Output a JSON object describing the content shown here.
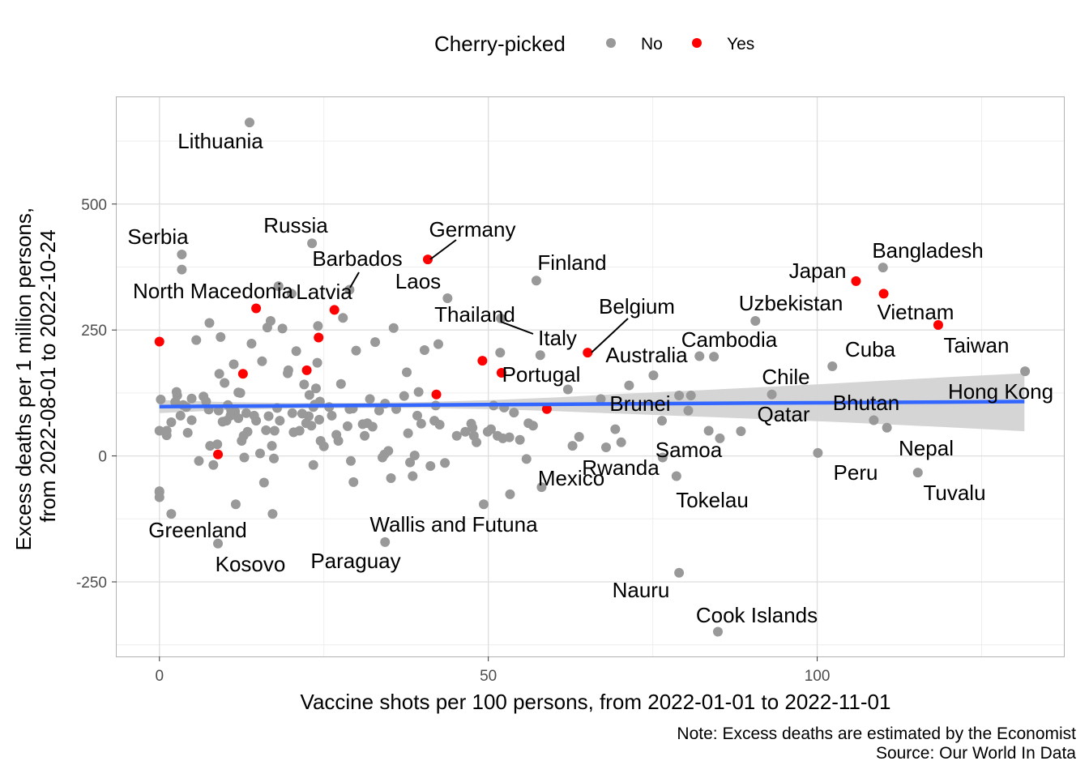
{
  "chart_data": {
    "type": "scatter",
    "xlabel": "Vaccine shots per 100 persons, from 2022-01-01 to 2022-11-01",
    "ylabel": [
      "Excess deaths per 1 million persons,",
      "from 2022-08-01 to 2022-10-24"
    ],
    "xlim": [
      -6.5,
      137.5
    ],
    "ylim": [
      -398,
      712
    ],
    "xticks": [
      0,
      50,
      100
    ],
    "yticks": [
      -250,
      0,
      250,
      500
    ],
    "xtick_labels": [
      "0",
      "50",
      "100"
    ],
    "ytick_labels": [
      "-250",
      "0",
      "250",
      "500"
    ],
    "grid": true,
    "legend": {
      "title": "Cherry-picked",
      "placement": "top",
      "entries": [
        {
          "key": "No",
          "label": "No",
          "color": "#999999"
        },
        {
          "key": "Yes",
          "label": "Yes",
          "color": "#ff0000"
        }
      ]
    },
    "trend": {
      "color": "#3366ff",
      "ribbon_color": "#d3d3d3",
      "x": [
        0,
        10,
        20,
        30,
        40,
        50,
        60,
        70,
        80,
        90,
        100,
        110,
        120,
        131.5
      ],
      "y": [
        98,
        98.8,
        99.5,
        100.3,
        101,
        101.8,
        102.5,
        103.3,
        104,
        104.8,
        105.5,
        106.3,
        107,
        108
      ],
      "lower": [
        85,
        91,
        94,
        95,
        95,
        93,
        89,
        84,
        79,
        74,
        69,
        63,
        57,
        49
      ],
      "upper": [
        111,
        107,
        105,
        105.5,
        107,
        110.5,
        116,
        123,
        129,
        135.5,
        142,
        149.5,
        156.5,
        164
      ]
    },
    "labeled_points": [
      {
        "name": "Lithuania",
        "x": 13.7,
        "y": 662,
        "cherry": "No"
      },
      {
        "name": "Serbia",
        "x": 3.4,
        "y": 400,
        "cherry": "No"
      },
      {
        "name": "North Macedonia",
        "x": 14.7,
        "y": 293,
        "cherry": "Yes"
      },
      {
        "name": "Russia",
        "x": 23.2,
        "y": 422,
        "cherry": "No"
      },
      {
        "name": "Barbados",
        "x": 28.9,
        "y": 330,
        "cherry": "No"
      },
      {
        "name": "Latvia",
        "x": 26.6,
        "y": 290,
        "cherry": "Yes"
      },
      {
        "name": "Germany",
        "x": 40.8,
        "y": 390,
        "cherry": "Yes"
      },
      {
        "name": "Laos",
        "x": 43.8,
        "y": 313,
        "cherry": "No"
      },
      {
        "name": "Thailand",
        "x": 51.9,
        "y": 273,
        "cherry": "No"
      },
      {
        "name": "Italy",
        "x": 49.1,
        "y": 189,
        "cherry": "Yes"
      },
      {
        "name": "Portugal",
        "x": 52,
        "y": 165,
        "cherry": "Yes"
      },
      {
        "name": "Finland",
        "x": 57.3,
        "y": 348,
        "cherry": "No"
      },
      {
        "name": "Belgium",
        "x": 65.1,
        "y": 205,
        "cherry": "Yes"
      },
      {
        "name": "Australia",
        "x": 58.9,
        "y": 93,
        "cherry": "Yes"
      },
      {
        "name": "Mexico",
        "x": 58.1,
        "y": -62,
        "cherry": "No"
      },
      {
        "name": "Rwanda",
        "x": 67.9,
        "y": 17,
        "cherry": "No"
      },
      {
        "name": "Brunei",
        "x": 67.1,
        "y": 113,
        "cherry": "No"
      },
      {
        "name": "Samoa",
        "x": 76.5,
        "y": -3,
        "cherry": "No"
      },
      {
        "name": "Tokelau",
        "x": 78.6,
        "y": -40,
        "cherry": "No"
      },
      {
        "name": "Cambodia",
        "x": 84.3,
        "y": 197,
        "cherry": "No"
      },
      {
        "name": "Uzbekistan",
        "x": 90.6,
        "y": 268,
        "cherry": "No"
      },
      {
        "name": "Chile",
        "x": 93.1,
        "y": 122,
        "cherry": "No"
      },
      {
        "name": "Qatar",
        "x": 88.4,
        "y": 49,
        "cherry": "No"
      },
      {
        "name": "Nauru",
        "x": 79,
        "y": -232,
        "cherry": "No"
      },
      {
        "name": "Cook Islands",
        "x": 84.9,
        "y": -349,
        "cherry": "No"
      },
      {
        "name": "Japan",
        "x": 105.9,
        "y": 347,
        "cherry": "Yes"
      },
      {
        "name": "Bangladesh",
        "x": 110,
        "y": 374,
        "cherry": "No"
      },
      {
        "name": "Vietnam",
        "x": 110.1,
        "y": 322,
        "cherry": "Yes"
      },
      {
        "name": "Taiwan",
        "x": 118.4,
        "y": 260,
        "cherry": "Yes"
      },
      {
        "name": "Cuba",
        "x": 102.3,
        "y": 178,
        "cherry": "No"
      },
      {
        "name": "Bhutan",
        "x": 108.6,
        "y": 71,
        "cherry": "No"
      },
      {
        "name": "Hong Kong",
        "x": 131.6,
        "y": 168,
        "cherry": "No"
      },
      {
        "name": "Peru",
        "x": 100.1,
        "y": 6,
        "cherry": "No"
      },
      {
        "name": "Nepal",
        "x": 110.6,
        "y": 56,
        "cherry": "No"
      },
      {
        "name": "Tuvalu",
        "x": 115.3,
        "y": -33,
        "cherry": "No"
      },
      {
        "name": "Greenland",
        "x": 0,
        "y": -70,
        "cherry": "No"
      },
      {
        "name": "Kosovo",
        "x": 8.9,
        "y": -174,
        "cherry": "No"
      },
      {
        "name": "Wallis and Futuna",
        "x": 34.3,
        "y": -171,
        "cherry": "No"
      },
      {
        "name": "Paraguay",
        "x": 34.2,
        "y": 3,
        "cherry": "No"
      }
    ],
    "labels": [
      {
        "name": "Lithuania"
      },
      {
        "name": "Serbia"
      },
      {
        "name": "North Macedonia"
      },
      {
        "name": "Russia"
      },
      {
        "name": "Barbados"
      },
      {
        "name": "Latvia"
      },
      {
        "name": "Germany"
      },
      {
        "name": "Laos"
      },
      {
        "name": "Thailand"
      },
      {
        "name": "Italy"
      },
      {
        "name": "Portugal"
      },
      {
        "name": "Finland"
      },
      {
        "name": "Belgium"
      },
      {
        "name": "Australia"
      },
      {
        "name": "Mexico"
      },
      {
        "name": "Rwanda"
      },
      {
        "name": "Brunei"
      },
      {
        "name": "Samoa"
      },
      {
        "name": "Tokelau"
      },
      {
        "name": "Cambodia"
      },
      {
        "name": "Uzbekistan"
      },
      {
        "name": "Chile"
      },
      {
        "name": "Qatar"
      },
      {
        "name": "Nauru"
      },
      {
        "name": "Cook Islands"
      },
      {
        "name": "Japan"
      },
      {
        "name": "Bangladesh"
      },
      {
        "name": "Vietnam"
      },
      {
        "name": "Taiwan"
      },
      {
        "name": "Cuba"
      },
      {
        "name": "Bhutan"
      },
      {
        "name": "Hong Kong"
      },
      {
        "name": "Peru"
      },
      {
        "name": "Nepal"
      },
      {
        "name": "Tuvalu"
      },
      {
        "name": "Greenland"
      },
      {
        "name": "Kosovo"
      },
      {
        "name": "Wallis and Futuna"
      },
      {
        "name": "Paraguay"
      }
    ],
    "other_points_yes": [
      [
        0,
        227
      ],
      [
        8.9,
        3
      ],
      [
        12.7,
        163
      ],
      [
        22.4,
        170
      ],
      [
        24.2,
        235
      ],
      [
        42.1,
        122
      ]
    ],
    "other_points_no": [
      [
        0.2,
        112
      ],
      [
        0,
        50
      ],
      [
        0,
        -72
      ],
      [
        0,
        -82
      ],
      [
        1.1,
        41
      ],
      [
        1.1,
        50
      ],
      [
        1.8,
        -115
      ],
      [
        1.8,
        67
      ],
      [
        2.4,
        107
      ],
      [
        2.6,
        127
      ],
      [
        2.7,
        120
      ],
      [
        3.4,
        370
      ],
      [
        3.2,
        80
      ],
      [
        3.6,
        101
      ],
      [
        4.1,
        97
      ],
      [
        4.3,
        46
      ],
      [
        4.9,
        114
      ],
      [
        4.9,
        71
      ],
      [
        5.6,
        230
      ],
      [
        6,
        -10
      ],
      [
        6.7,
        118
      ],
      [
        7.1,
        108
      ],
      [
        7.5,
        92
      ],
      [
        7.6,
        264
      ],
      [
        7.7,
        20
      ],
      [
        8.2,
        -18
      ],
      [
        8.8,
        23
      ],
      [
        9,
        90
      ],
      [
        9.1,
        163
      ],
      [
        9.3,
        236
      ],
      [
        9.6,
        68
      ],
      [
        9.9,
        145
      ],
      [
        10.2,
        70
      ],
      [
        10.4,
        101
      ],
      [
        10.8,
        80
      ],
      [
        10.9,
        90
      ],
      [
        11.3,
        182
      ],
      [
        11.5,
        88
      ],
      [
        11.6,
        -96
      ],
      [
        12,
        75
      ],
      [
        12,
        126
      ],
      [
        12.3,
        125
      ],
      [
        12.5,
        30
      ],
      [
        12.8,
        40
      ],
      [
        12.9,
        -3
      ],
      [
        13.2,
        85
      ],
      [
        13.4,
        48
      ],
      [
        14,
        223
      ],
      [
        14.4,
        80
      ],
      [
        14.7,
        70
      ],
      [
        15.3,
        5
      ],
      [
        15.6,
        188
      ],
      [
        15.9,
        -53
      ],
      [
        16.2,
        51
      ],
      [
        16.4,
        255
      ],
      [
        16.6,
        79
      ],
      [
        16.9,
        268
      ],
      [
        17.1,
        20
      ],
      [
        17.2,
        -115
      ],
      [
        17.4,
        -5
      ],
      [
        17.5,
        50
      ],
      [
        17.9,
        95
      ],
      [
        18.1,
        337
      ],
      [
        18.3,
        70
      ],
      [
        18.7,
        253
      ],
      [
        19.5,
        164
      ],
      [
        19.6,
        170
      ],
      [
        20.1,
        322
      ],
      [
        20.2,
        85
      ],
      [
        20.4,
        47
      ],
      [
        20.8,
        208
      ],
      [
        21.3,
        50
      ],
      [
        21.7,
        84
      ],
      [
        22,
        142
      ],
      [
        22.3,
        65
      ],
      [
        22.7,
        79
      ],
      [
        22.8,
        121
      ],
      [
        23.1,
        60
      ],
      [
        23.4,
        97
      ],
      [
        23.4,
        -18
      ],
      [
        23.6,
        102
      ],
      [
        23.8,
        134
      ],
      [
        24,
        185
      ],
      [
        24.1,
        258
      ],
      [
        24.3,
        72
      ],
      [
        24.4,
        108
      ],
      [
        24.5,
        30
      ],
      [
        25,
        19
      ],
      [
        25.8,
        97
      ],
      [
        26.2,
        80
      ],
      [
        26.9,
        42
      ],
      [
        27.2,
        30
      ],
      [
        27.6,
        143
      ],
      [
        27.9,
        274
      ],
      [
        28.6,
        59
      ],
      [
        28.9,
        93
      ],
      [
        29.1,
        -10
      ],
      [
        29.4,
        94
      ],
      [
        29.5,
        -52
      ],
      [
        29.9,
        209
      ],
      [
        30.9,
        63
      ],
      [
        31.2,
        40
      ],
      [
        31.6,
        65
      ],
      [
        32,
        113
      ],
      [
        32.4,
        58
      ],
      [
        32.8,
        226
      ],
      [
        33.4,
        90
      ],
      [
        33.9,
        -3
      ],
      [
        34.3,
        104
      ],
      [
        34.8,
        10
      ],
      [
        35.2,
        -44
      ],
      [
        35.6,
        254
      ],
      [
        36,
        93
      ],
      [
        37.2,
        119
      ],
      [
        37.6,
        166
      ],
      [
        37.8,
        45
      ],
      [
        38.1,
        -13
      ],
      [
        38.5,
        -40
      ],
      [
        38.8,
        1
      ],
      [
        39.2,
        80
      ],
      [
        39.4,
        127
      ],
      [
        39.8,
        64
      ],
      [
        40.3,
        210
      ],
      [
        41.2,
        -20
      ],
      [
        41.8,
        70
      ],
      [
        42,
        100
      ],
      [
        42.4,
        222
      ],
      [
        42.6,
        62
      ],
      [
        43.4,
        -14
      ],
      [
        45.2,
        40
      ],
      [
        46.5,
        48
      ],
      [
        47.4,
        64
      ],
      [
        47.6,
        56
      ],
      [
        47.8,
        40
      ],
      [
        48.2,
        27
      ],
      [
        49.3,
        -96
      ],
      [
        49.9,
        48
      ],
      [
        50.4,
        53
      ],
      [
        50.8,
        100
      ],
      [
        51.4,
        40
      ],
      [
        51.8,
        205
      ],
      [
        52.2,
        35
      ],
      [
        52.4,
        96
      ],
      [
        53.2,
        37
      ],
      [
        53.9,
        86
      ],
      [
        53.3,
        -76
      ],
      [
        54.8,
        32
      ],
      [
        55.8,
        -6
      ],
      [
        56.1,
        65
      ],
      [
        56.8,
        60
      ],
      [
        57.9,
        200
      ],
      [
        62.1,
        132
      ],
      [
        62.8,
        20
      ],
      [
        63.8,
        38
      ],
      [
        69.3,
        53
      ],
      [
        70.2,
        27
      ],
      [
        71.4,
        140
      ],
      [
        75.1,
        160
      ],
      [
        76.4,
        70
      ],
      [
        79,
        120
      ],
      [
        80.4,
        90
      ],
      [
        80.8,
        120
      ],
      [
        82.1,
        198
      ],
      [
        83.5,
        50
      ],
      [
        85.2,
        35
      ]
    ]
  },
  "notes": {
    "note": "Note: Excess deaths are estimated by the Economist",
    "source": "Source: Our World In Data"
  }
}
